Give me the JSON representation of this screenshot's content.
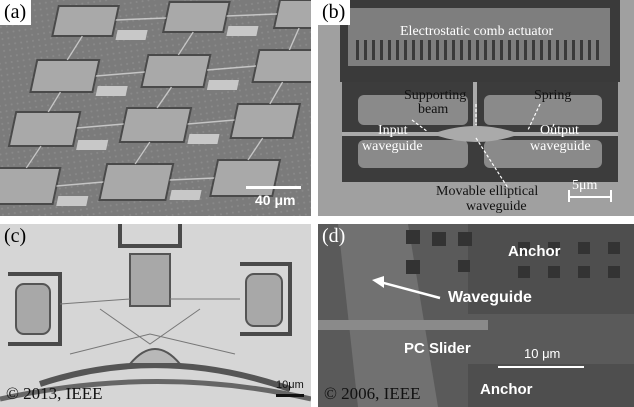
{
  "panels": {
    "a": {
      "tag": "(a)",
      "scale_bar": "40 μm"
    },
    "b": {
      "tag": "(b)",
      "actuator": "Electrostatic comb actuator",
      "supporting_beam_1": "Supporting",
      "supporting_beam_2": "beam",
      "spring": "Spring",
      "input_1": "Input",
      "input_2": "waveguide",
      "output_1": "Output",
      "output_2": "waveguide",
      "movable_1": "Movable elliptical",
      "movable_2": "waveguide",
      "scale_bar": "5μm"
    },
    "c": {
      "tag": "(c)",
      "copyright": "© 2013, IEEE",
      "scale_bar": "10μm"
    },
    "d": {
      "tag": "(d)",
      "anchor_top": "Anchor",
      "waveguide": "Waveguide",
      "pc_slider": "PC Slider",
      "scale_bar": "10 μm",
      "anchor_bottom": "Anchor",
      "copyright": "© 2006, IEEE"
    }
  }
}
